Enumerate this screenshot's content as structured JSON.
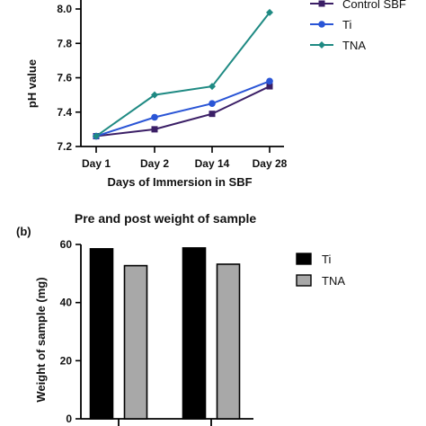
{
  "colors": {
    "control": "#3b1f66",
    "ti_line": "#2a55d6",
    "tna_line": "#1f8a83",
    "ti_bar": "#000000",
    "tna_bar": "#a8a8a8",
    "axis": "#000000"
  },
  "chart_data": [
    {
      "type": "line",
      "categories": [
        "Day 1",
        "Day 2",
        "Day 14",
        "Day 28"
      ],
      "xlabel": "Days of Immersion in SBF",
      "ylabel": "pH value",
      "ylim": [
        7.2,
        8.0
      ],
      "yticks": [
        "7.2",
        "7.4",
        "7.6",
        "7.8",
        "8.0"
      ],
      "legend_position": "top-right",
      "series": [
        {
          "name": "Control SBF",
          "values": [
            7.26,
            7.3,
            7.39,
            7.55
          ],
          "marker": "square"
        },
        {
          "name": "Ti",
          "values": [
            7.26,
            7.37,
            7.45,
            7.58
          ],
          "marker": "circle"
        },
        {
          "name": "TNA",
          "values": [
            7.26,
            7.5,
            7.55,
            7.98
          ],
          "marker": "diamond"
        }
      ]
    },
    {
      "type": "bar",
      "panel_label": "(b)",
      "title": "Pre and post weight of sample",
      "ylabel": "Weight of sample (mg)",
      "ylim": [
        0,
        60
      ],
      "yticks": [
        "0",
        "20",
        "40",
        "60"
      ],
      "legend_position": "right",
      "series": [
        {
          "name": "Ti",
          "values": [
            58.5,
            58.8
          ]
        },
        {
          "name": "TNA",
          "values": [
            52.7,
            53.2
          ]
        }
      ]
    }
  ]
}
